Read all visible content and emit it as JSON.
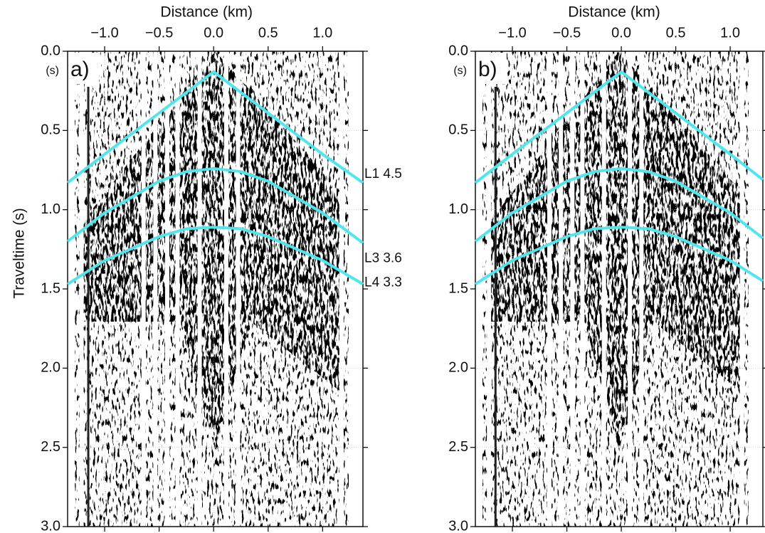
{
  "chart_data": [
    {
      "type": "line",
      "panel_label": "a)",
      "xlabel": "Distance (km)",
      "ylabel": "Traveltime (s)",
      "yunit": "(s)",
      "xlim": [
        -1.34,
        1.37
      ],
      "ylim": [
        0,
        3
      ],
      "y_reversed": true,
      "grid": true,
      "xticks": [
        {
          "value": -1,
          "label": "−1.0"
        },
        {
          "value": -0.5,
          "label": "−0.5"
        },
        {
          "value": 0,
          "label": "0.0"
        },
        0.5,
        {
          "value": 1,
          "label": "1.0"
        }
      ],
      "yticks": [
        {
          "value": 0,
          "label": "0.0"
        },
        0.5,
        {
          "value": 1,
          "label": "1.0"
        },
        1.5,
        {
          "value": 2,
          "label": "2.0"
        },
        2.5,
        {
          "value": 3,
          "label": "3.0"
        }
      ],
      "x": [
        -1.34,
        -1.0,
        -0.5,
        -0.25,
        0,
        0.25,
        0.5,
        1.0,
        1.37
      ],
      "series": [
        {
          "name": "L1 4.5",
          "color": "#4fe6ee",
          "values": [
            0.83,
            0.65,
            0.39,
            0.26,
            0.13,
            0.26,
            0.39,
            0.65,
            0.83
          ]
        },
        {
          "name": "L3 3.6",
          "color": "#4fe6ee",
          "values": [
            1.2,
            1.02,
            0.82,
            0.76,
            0.74,
            0.76,
            0.82,
            1.02,
            1.21
          ]
        },
        {
          "name": "L4 3.3",
          "color": "#4fe6ee",
          "values": [
            1.47,
            1.32,
            1.17,
            1.12,
            1.11,
            1.12,
            1.17,
            1.32,
            1.47
          ]
        }
      ]
    },
    {
      "type": "line",
      "panel_label": "b)",
      "xlabel": "Distance (km)",
      "yunit": "(s)",
      "xlim": [
        -1.34,
        1.3
      ],
      "ylim": [
        0,
        3
      ],
      "y_reversed": true,
      "grid": true,
      "xticks": [
        {
          "value": -1,
          "label": "−1.0"
        },
        {
          "value": -0.5,
          "label": "−0.5"
        },
        {
          "value": 0,
          "label": "0.0"
        },
        0.5,
        {
          "value": 1,
          "label": "1.0"
        }
      ],
      "yticks": [
        {
          "value": 0,
          "label": "0.0"
        },
        0.5,
        {
          "value": 1,
          "label": "1.0"
        },
        1.5,
        {
          "value": 2,
          "label": "2.0"
        },
        2.5,
        {
          "value": 3,
          "label": "3.0"
        }
      ],
      "x": [
        -1.34,
        -1.0,
        -0.5,
        -0.25,
        0,
        0.25,
        0.5,
        1.0,
        1.3
      ],
      "series": [
        {
          "color": "#4fe6ee",
          "values": [
            0.83,
            0.65,
            0.39,
            0.26,
            0.13,
            0.26,
            0.39,
            0.65,
            0.81
          ]
        },
        {
          "color": "#4fe6ee",
          "values": [
            1.2,
            1.02,
            0.82,
            0.76,
            0.74,
            0.76,
            0.82,
            1.02,
            1.18
          ]
        },
        {
          "color": "#4fe6ee",
          "values": [
            1.47,
            1.32,
            1.17,
            1.12,
            1.11,
            1.12,
            1.17,
            1.32,
            1.45
          ]
        }
      ]
    }
  ]
}
